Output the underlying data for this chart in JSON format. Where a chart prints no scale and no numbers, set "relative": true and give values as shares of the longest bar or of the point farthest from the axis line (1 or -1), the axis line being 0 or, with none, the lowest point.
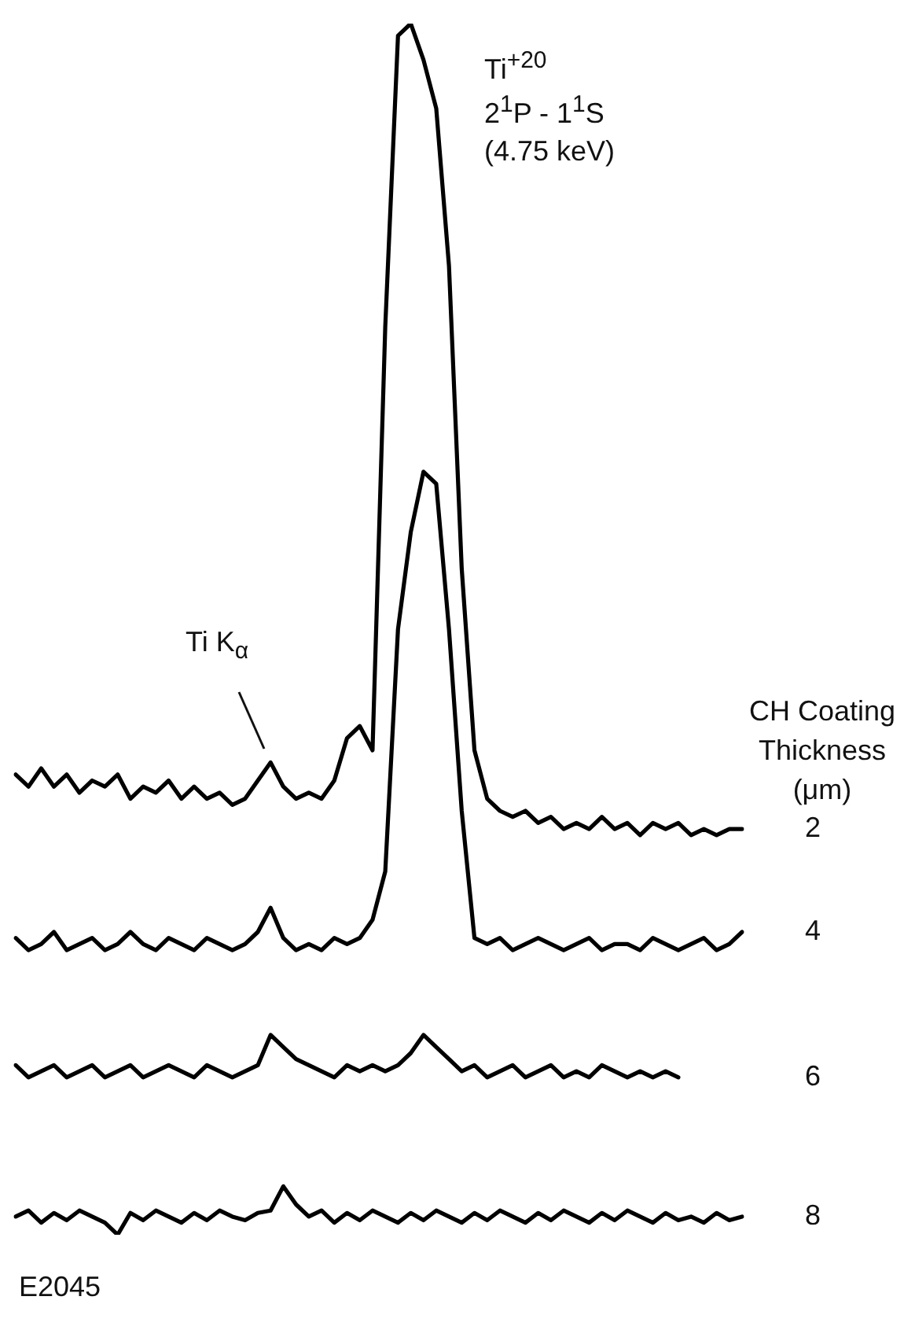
{
  "chart_data": {
    "type": "line",
    "relative": true,
    "legend": false,
    "marker": "none",
    "line_style": "solid",
    "legend_title": "CH Coating Thickness (μm)",
    "annotations": [
      "Ti$^{+20}$",
      "2$^{1}$P - 1$^{1}$S",
      "(4.75 keV)",
      "Ti K$_{α}$",
      "E2045"
    ],
    "categories": [
      null,
      null,
      null,
      null,
      null,
      null,
      null,
      null,
      null,
      null,
      null,
      null,
      null,
      null,
      null,
      null,
      null,
      null,
      null,
      null,
      null,
      null,
      null,
      null,
      null,
      null,
      null,
      null,
      null,
      null,
      null,
      null,
      null,
      null,
      null,
      null,
      null,
      null,
      null,
      null,
      null,
      null,
      null,
      null,
      null,
      null,
      null,
      null,
      null,
      null,
      null,
      null,
      null,
      null,
      null,
      null,
      null,
      null
    ],
    "series": [
      {
        "name": "2",
        "color": "#000000",
        "values": [
          0.38,
          0.37,
          0.385,
          0.37,
          0.38,
          0.365,
          0.375,
          0.37,
          0.38,
          0.36,
          0.37,
          0.365,
          0.375,
          0.36,
          0.37,
          0.36,
          0.365,
          0.355,
          0.36,
          0.375,
          0.39,
          0.37,
          0.36,
          0.365,
          0.36,
          0.375,
          0.41,
          0.42,
          0.4,
          0.75,
          0.99,
          1,
          0.97,
          0.93,
          0.8,
          0.55,
          0.4,
          0.36,
          0.35,
          0.345,
          0.35,
          0.34,
          0.345,
          0.335,
          0.34,
          0.335,
          0.345,
          0.335,
          0.34,
          0.33,
          0.34,
          0.335,
          0.34,
          0.33,
          0.335,
          0.33,
          0.335,
          0.335
        ]
      },
      {
        "name": "4",
        "color": "#000000",
        "values": [
          0.245,
          0.235,
          0.24,
          0.25,
          0.235,
          0.24,
          0.245,
          0.235,
          0.24,
          0.25,
          0.24,
          0.235,
          0.245,
          0.24,
          0.235,
          0.245,
          0.24,
          0.235,
          0.24,
          0.25,
          0.27,
          0.245,
          0.235,
          0.24,
          0.235,
          0.245,
          0.24,
          0.245,
          0.26,
          0.3,
          0.5,
          0.58,
          0.63,
          0.62,
          0.5,
          0.35,
          0.245,
          0.24,
          0.245,
          0.235,
          0.24,
          0.245,
          0.24,
          0.235,
          0.24,
          0.245,
          0.235,
          0.24,
          0.24,
          0.235,
          0.245,
          0.24,
          0.235,
          0.24,
          0.245,
          0.235,
          0.24,
          0.25
        ]
      },
      {
        "name": "6",
        "color": "#000000",
        "values": [
          0.14,
          0.13,
          0.135,
          0.14,
          0.13,
          0.135,
          0.14,
          0.13,
          0.135,
          0.14,
          0.13,
          0.135,
          0.14,
          0.135,
          0.13,
          0.14,
          0.135,
          0.13,
          0.135,
          0.14,
          0.165,
          0.155,
          0.145,
          0.14,
          0.135,
          0.13,
          0.14,
          0.135,
          0.14,
          0.135,
          0.14,
          0.15,
          0.165,
          0.155,
          0.145,
          0.135,
          0.14,
          0.13,
          0.135,
          0.14,
          0.13,
          0.135,
          0.14,
          0.13,
          0.135,
          0.13,
          0.14,
          0.135,
          0.13,
          0.135,
          0.13,
          0.135,
          0.13,
          null,
          null,
          null,
          null,
          null
        ]
      },
      {
        "name": "8",
        "color": "#000000",
        "values": [
          0.015,
          0.02,
          0.01,
          0.018,
          0.012,
          0.02,
          0.015,
          0.01,
          0,
          0.018,
          0.012,
          0.02,
          0.015,
          0.01,
          0.018,
          0.012,
          0.02,
          0.015,
          0.012,
          0.018,
          0.02,
          0.04,
          0.025,
          0.015,
          0.02,
          0.01,
          0.018,
          0.012,
          0.02,
          0.015,
          0.01,
          0.018,
          0.012,
          0.02,
          0.015,
          0.01,
          0.018,
          0.012,
          0.02,
          0.015,
          0.01,
          0.018,
          0.012,
          0.02,
          0.015,
          0.01,
          0.018,
          0.012,
          0.02,
          0.015,
          0.01,
          0.018,
          0.012,
          0.015,
          0.01,
          0.018,
          0.012,
          0.015
        ]
      }
    ]
  }
}
